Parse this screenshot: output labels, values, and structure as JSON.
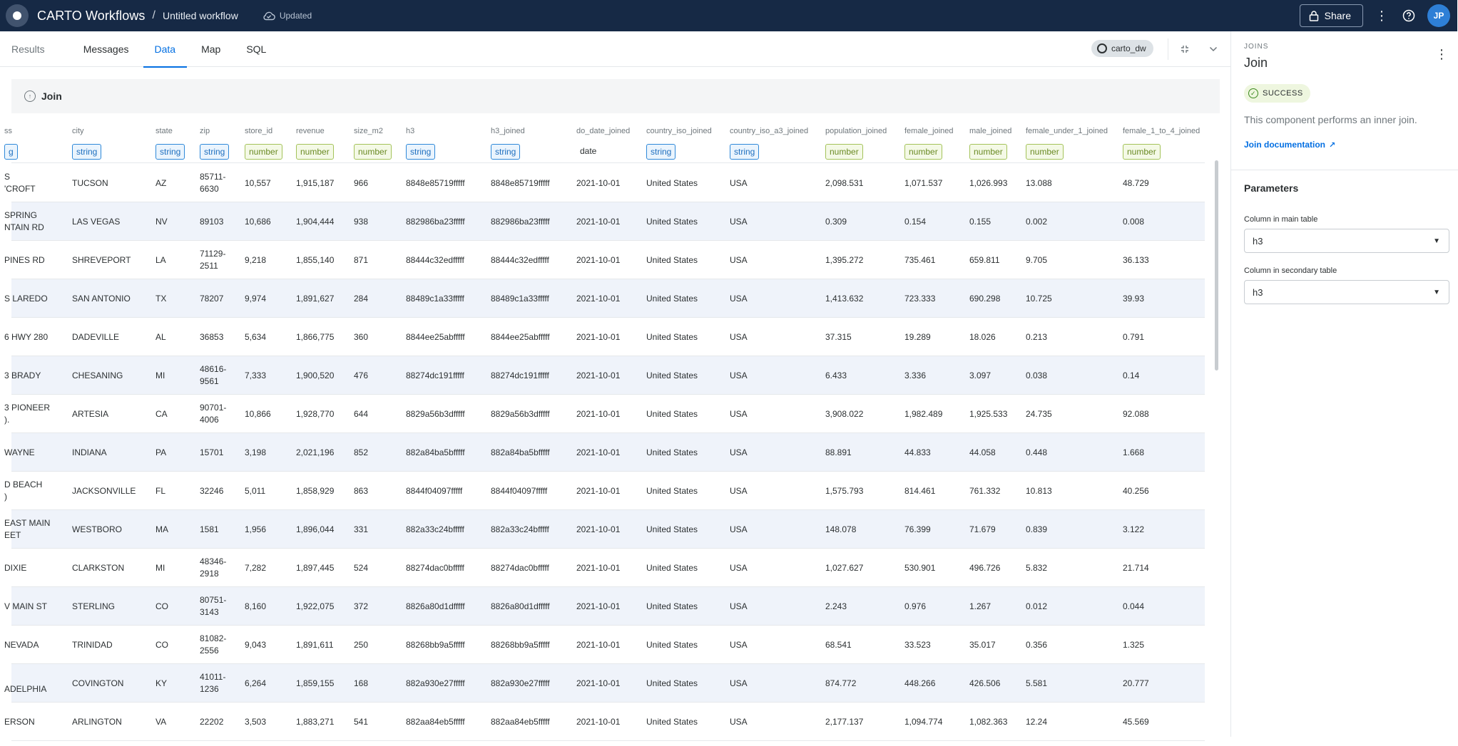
{
  "app": {
    "title": "CARTO Workflows",
    "separator": "/",
    "workflow_name": "Untitled workflow",
    "save_status": "Updated",
    "share_label": "Share",
    "avatar_initials": "JP"
  },
  "tabs": [
    "Results",
    "Messages",
    "Data",
    "Map",
    "SQL"
  ],
  "active_tab": "Data",
  "connection": "carto_dw",
  "node": {
    "label": "Join"
  },
  "columns": [
    {
      "name": "ss",
      "type": "g",
      "kind": "string"
    },
    {
      "name": "city",
      "type": "string",
      "kind": "string"
    },
    {
      "name": "state",
      "type": "string",
      "kind": "string"
    },
    {
      "name": "zip",
      "type": "string",
      "kind": "string"
    },
    {
      "name": "store_id",
      "type": "number",
      "kind": "number"
    },
    {
      "name": "revenue",
      "type": "number",
      "kind": "number"
    },
    {
      "name": "size_m2",
      "type": "number",
      "kind": "number"
    },
    {
      "name": "h3",
      "type": "string",
      "kind": "string"
    },
    {
      "name": "h3_joined",
      "type": "string",
      "kind": "string"
    },
    {
      "name": "do_date_joined",
      "type": "date",
      "kind": "date"
    },
    {
      "name": "country_iso_joined",
      "type": "string",
      "kind": "string"
    },
    {
      "name": "country_iso_a3_joined",
      "type": "string",
      "kind": "string"
    },
    {
      "name": "population_joined",
      "type": "number",
      "kind": "number"
    },
    {
      "name": "female_joined",
      "type": "number",
      "kind": "number"
    },
    {
      "name": "male_joined",
      "type": "number",
      "kind": "number"
    },
    {
      "name": "female_under_1_joined",
      "type": "number",
      "kind": "number"
    },
    {
      "name": "female_1_to_4_joined",
      "type": "number",
      "kind": "number"
    }
  ],
  "rows": [
    [
      "S\n'CROFT",
      "TUCSON",
      "AZ",
      "85711-\n6630",
      "10,557",
      "1,915,187",
      "966",
      "8848e85719fffff",
      "8848e85719fffff",
      "2021-10-01",
      "United States",
      "USA",
      "2,098.531",
      "1,071.537",
      "1,026.993",
      "13.088",
      "48.729"
    ],
    [
      " SPRING\nNTAIN RD",
      "LAS VEGAS",
      "NV",
      "89103",
      "10,686",
      "1,904,444",
      "938",
      "882986ba23fffff",
      "882986ba23fffff",
      "2021-10-01",
      "United States",
      "USA",
      "0.309",
      "0.154",
      "0.155",
      "0.002",
      "0.008"
    ],
    [
      " PINES RD",
      "SHREVEPORT",
      "LA",
      "71129-\n2511",
      "9,218",
      "1,855,140",
      "871",
      "88444c32edfffff",
      "88444c32edfffff",
      "2021-10-01",
      "United States",
      "USA",
      "1,395.272",
      "735.461",
      "659.811",
      "9.705",
      "36.133"
    ],
    [
      "S LAREDO",
      "SAN ANTONIO",
      "TX",
      "78207",
      "9,974",
      "1,891,627",
      "284",
      "88489c1a33fffff",
      "88489c1a33fffff",
      "2021-10-01",
      "United States",
      "USA",
      "1,413.632",
      "723.333",
      "690.298",
      "10.725",
      "39.93"
    ],
    [
      "6 HWY 280",
      "DADEVILLE",
      "AL",
      "36853",
      "5,634",
      "1,866,775",
      "360",
      "8844ee25abfffff",
      "8844ee25abfffff",
      "2021-10-01",
      "United States",
      "USA",
      "37.315",
      "19.289",
      "18.026",
      "0.213",
      "0.791"
    ],
    [
      "3 BRADY",
      "CHESANING",
      "MI",
      "48616-\n9561",
      "7,333",
      "1,900,520",
      "476",
      "88274dc191fffff",
      "88274dc191fffff",
      "2021-10-01",
      "United States",
      "USA",
      "6.433",
      "3.336",
      "3.097",
      "0.038",
      "0.14"
    ],
    [
      "3 PIONEER\n).",
      "ARTESIA",
      "CA",
      "90701-\n4006",
      "10,866",
      "1,928,770",
      "644",
      "8829a56b3dfffff",
      "8829a56b3dfffff",
      "2021-10-01",
      "United States",
      "USA",
      "3,908.022",
      "1,982.489",
      "1,925.533",
      "24.735",
      "92.088"
    ],
    [
      "WAYNE\n",
      "INDIANA",
      "PA",
      "15701",
      "3,198",
      "2,021,196",
      "852",
      "882a84ba5bfffff",
      "882a84ba5bfffff",
      "2021-10-01",
      "United States",
      "USA",
      "88.891",
      "44.833",
      "44.058",
      "0.448",
      "1.668"
    ],
    [
      "D BEACH\n)",
      "JACKSONVILLE",
      "FL",
      "32246",
      "5,011",
      "1,858,929",
      "863",
      "8844f04097fffff",
      "8844f04097fffff",
      "2021-10-01",
      "United States",
      "USA",
      "1,575.793",
      "814.461",
      "761.332",
      "10.813",
      "40.256"
    ],
    [
      "EAST MAIN\nEET",
      "WESTBORO",
      "MA",
      "1581",
      "1,956",
      "1,896,044",
      "331",
      "882a33c24bfffff",
      "882a33c24bfffff",
      "2021-10-01",
      "United States",
      "USA",
      "148.078",
      "76.399",
      "71.679",
      "0.839",
      "3.122"
    ],
    [
      " DIXIE\n",
      "CLARKSTON",
      "MI",
      "48346-\n2918",
      "7,282",
      "1,897,445",
      "524",
      "88274dac0bfffff",
      "88274dac0bfffff",
      "2021-10-01",
      "United States",
      "USA",
      "1,027.627",
      "530.901",
      "496.726",
      "5.832",
      "21.714"
    ],
    [
      "V MAIN ST",
      "STERLING",
      "CO",
      "80751-\n3143",
      "8,160",
      "1,922,075",
      "372",
      "8826a80d1dfffff",
      "8826a80d1dfffff",
      "2021-10-01",
      "United States",
      "USA",
      "2.243",
      "0.976",
      "1.267",
      "0.012",
      "0.044"
    ],
    [
      "NEVADA\n",
      "TRINIDAD",
      "CO",
      "81082-\n2556",
      "9,043",
      "1,891,611",
      "250",
      "88268bb9a5fffff",
      "88268bb9a5fffff",
      "2021-10-01",
      "United States",
      "USA",
      "68.541",
      "33.523",
      "35.017",
      "0.356",
      "1.325"
    ],
    [
      "\nADELPHIA",
      "COVINGTON",
      "KY",
      "41011-\n1236",
      "6,264",
      "1,859,155",
      "168",
      "882a930e27fffff",
      "882a930e27fffff",
      "2021-10-01",
      "United States",
      "USA",
      "874.772",
      "448.266",
      "426.506",
      "5.581",
      "20.777"
    ],
    [
      "ERSON",
      "ARLINGTON",
      "VA",
      "22202",
      "3,503",
      "1,883,271",
      "541",
      "882aa84eb5fffff",
      "882aa84eb5fffff",
      "2021-10-01",
      "United States",
      "USA",
      "2,177.137",
      "1,094.774",
      "1,082.363",
      "12.24",
      "45.569"
    ]
  ],
  "panel": {
    "overline": "JOINS",
    "title": "Join",
    "status": "SUCCESS",
    "description": "This component performs an inner join.",
    "doc_link": "Join documentation",
    "params_title": "Parameters",
    "main_label": "Column in main table",
    "main_value": "h3",
    "secondary_label": "Column in secondary table",
    "secondary_value": "h3"
  },
  "icons": {
    "logo": "carto-logo-icon",
    "cloud": "cloud-saved-icon",
    "lock": "lock-icon",
    "more": "more-vert-icon",
    "help": "help-icon",
    "db": "database-search-icon",
    "collapse": "collapse-icon",
    "chevron": "chevron-down-icon",
    "success": "check-circle-icon",
    "external": "external-link-icon"
  }
}
